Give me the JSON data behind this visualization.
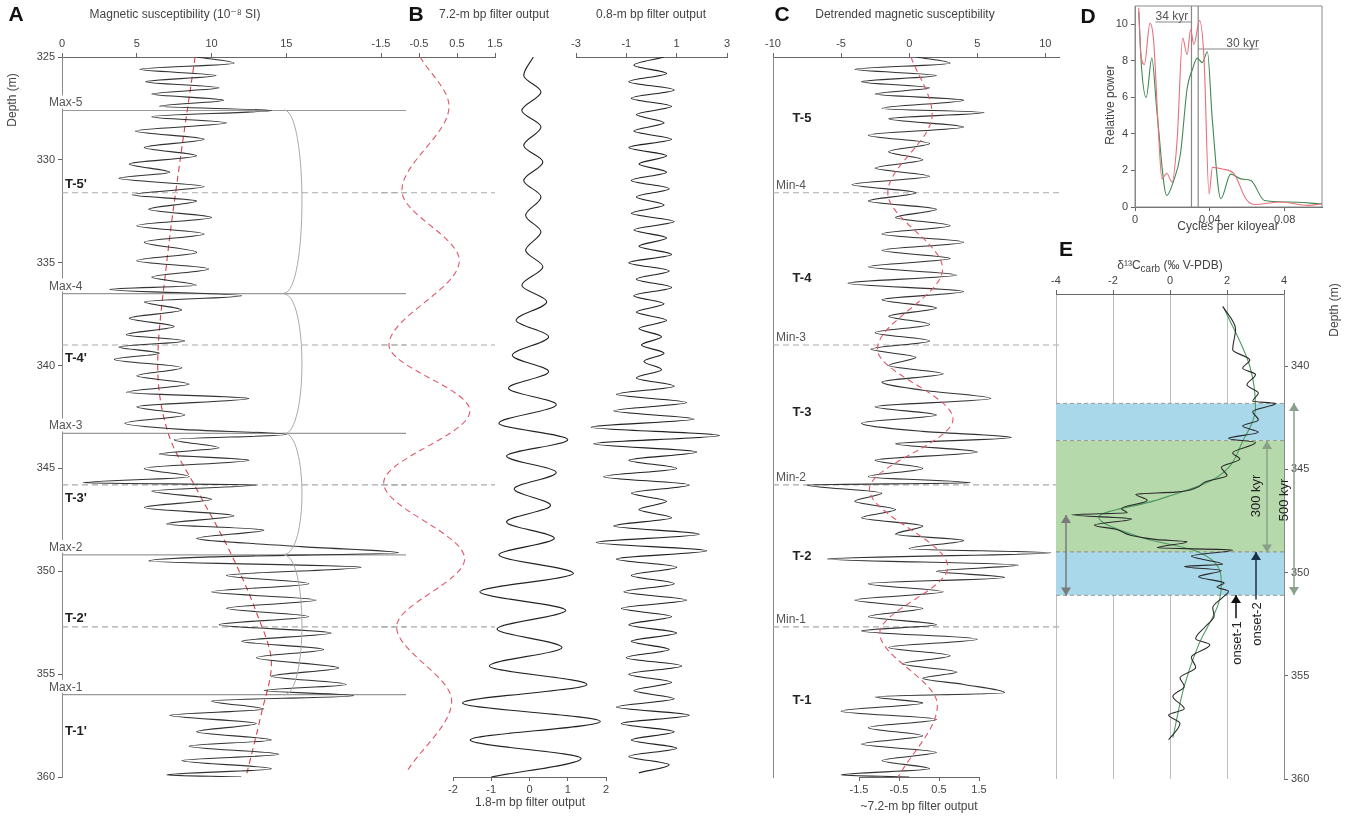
{
  "chart_data": [
    {
      "type": "line",
      "title": "A",
      "xlabel": "Magnetic susceptibility (10⁻⁸ SI)",
      "ylabel": "Depth (m)",
      "xlim": [
        0,
        23
      ],
      "xticks": [
        0,
        5,
        10,
        15
      ],
      "ylim": [
        360,
        325
      ],
      "yticks": [
        325,
        330,
        335,
        340,
        345,
        350,
        355,
        360
      ],
      "marker": "none",
      "series": [
        {
          "color": "#333333",
          "x": [
            9.0,
            11.5,
            5.2,
            10.3,
            5.6,
            10.5,
            6.0,
            10.8,
            6.5,
            14.0,
            6.0,
            11.0,
            4.9,
            9.5,
            5.5,
            9.0,
            4.5,
            7.2,
            3.8,
            9.5,
            4.7,
            9.0,
            5.8,
            10.0,
            5.0,
            9.5,
            5.5,
            9.0,
            5.0,
            9.8,
            6.0,
            9.0,
            3.2,
            12.0,
            5.5,
            8.0,
            4.5,
            7.5,
            4.3,
            8.2,
            3.8,
            6.5,
            3.5,
            8.0,
            5.0,
            8.5,
            4.3,
            12.5,
            5.0,
            8.2,
            4.2,
            8.0,
            15.0,
            7.5,
            10.5,
            6.5,
            12.5,
            5.5,
            8.5,
            1.4,
            13.0,
            6.0,
            10.0,
            5.5,
            11.5,
            7.0,
            13.5,
            9.0,
            16.0,
            22.5,
            10.0,
            5.8,
            20.0,
            11.0,
            16.5,
            10.0,
            17.0,
            11.0,
            16.5,
            10.5,
            18.0,
            12.0,
            17.5,
            13.0,
            18.5,
            14.0,
            19.0,
            13.5,
            19.5,
            10.0,
            13.5,
            7.2,
            13.0,
            9.0,
            14.0,
            8.5,
            14.5,
            8.0,
            14.0,
            7.0,
            12.0
          ],
          "values": [
            325.0,
            325.3,
            325.6,
            325.9,
            326.2,
            326.5,
            326.8,
            327.1,
            327.4,
            327.6,
            327.9,
            328.2,
            328.6,
            329.0,
            329.4,
            329.8,
            330.2,
            330.6,
            330.9,
            331.3,
            331.7,
            332.0,
            332.4,
            332.8,
            333.2,
            333.6,
            334.0,
            334.5,
            334.9,
            335.3,
            335.7,
            336.1,
            336.3,
            336.6,
            336.9,
            337.3,
            337.7,
            338.1,
            338.5,
            338.8,
            339.1,
            339.4,
            339.7,
            340.1,
            340.5,
            340.9,
            341.3,
            341.6,
            342.0,
            342.4,
            342.8,
            343.1,
            343.35,
            343.6,
            344.0,
            344.3,
            344.6,
            345.0,
            345.4,
            345.7,
            345.8,
            346.1,
            346.5,
            346.9,
            347.3,
            347.7,
            348.0,
            348.4,
            348.8,
            349.1,
            349.3,
            349.5,
            349.8,
            350.2,
            350.6,
            351.0,
            351.4,
            351.8,
            352.2,
            352.6,
            353.0,
            353.4,
            353.8,
            354.2,
            354.7,
            355.1,
            355.5,
            355.8,
            356.05,
            356.3,
            356.7,
            357.0,
            357.4,
            357.8,
            358.2,
            358.5,
            358.9,
            359.2,
            359.6,
            359.9,
            360.0
          ]
        },
        {
          "color": "#d9404f",
          "line_style": "dashed",
          "x": [
            8.9,
            7.9,
            7.0,
            6.4,
            7.2,
            9.0,
            11.2,
            13.0,
            14.0,
            13.3,
            12.3
          ],
          "values": [
            325,
            330,
            335,
            340,
            343.5,
            346,
            349,
            352,
            354.5,
            357,
            360
          ]
        }
      ],
      "ref_lines": [
        {
          "axis": "y",
          "value": 327.6,
          "label": "Max-5",
          "color": "#999999"
        },
        {
          "axis": "y",
          "value": 336.5,
          "label": "Max-4",
          "color": "#999999"
        },
        {
          "axis": "y",
          "value": 343.3,
          "label": "Max-3",
          "color": "#999999"
        },
        {
          "axis": "y",
          "value": 349.2,
          "label": "Max-2",
          "color": "#999999"
        },
        {
          "axis": "y",
          "value": 356.0,
          "label": "Max-1",
          "color": "#999999"
        },
        {
          "axis": "y",
          "value": 331.6,
          "color": "#aaaaaa",
          "line_style": "dashed"
        },
        {
          "axis": "y",
          "value": 339.0,
          "color": "#aaaaaa",
          "line_style": "dashed"
        },
        {
          "axis": "y",
          "value": 345.8,
          "color": "#aaaaaa",
          "line_style": "dashed"
        },
        {
          "axis": "y",
          "value": 352.7,
          "color": "#aaaaaa",
          "line_style": "dashed"
        }
      ],
      "annotations": [
        "T-5'",
        "T-4'",
        "T-3'",
        "T-2'",
        "T-1'"
      ]
    },
    {
      "type": "line",
      "title": "B",
      "xlabel": "7.2-m bp filter output",
      "xlim": [
        -1.5,
        1.5
      ],
      "xticks": [
        -1.5,
        -0.5,
        0.5,
        1.5
      ],
      "ylim": [
        360,
        325
      ],
      "tick_labels": "x",
      "marker": "none",
      "series": [
        {
          "color": "#e0566a",
          "line_style": "dashed",
          "x": [
            -0.47,
            0.29,
            -0.95,
            0.56,
            -1.29,
            0.84,
            -1.43,
            0.7,
            -1.09,
            0.36,
            -0.81
          ],
          "values": [
            325,
            327.4,
            331.5,
            334.9,
            339.0,
            342.2,
            345.7,
            349.4,
            352.7,
            356.3,
            359.7
          ]
        }
      ],
      "ref_lines": [
        {
          "axis": "y",
          "value": 331.6,
          "color": "#aaaaaa",
          "line_style": "dashed"
        },
        {
          "axis": "y",
          "value": 339.0,
          "color": "#aaaaaa",
          "line_style": "dashed"
        },
        {
          "axis": "y",
          "value": 345.8,
          "color": "#aaaaaa",
          "line_style": "dashed"
        },
        {
          "axis": "y",
          "value": 352.7,
          "color": "#aaaaaa",
          "line_style": "dashed"
        }
      ]
    },
    {
      "type": "line",
      "xlabel": "1.8-m bp filter output",
      "xlim": [
        -2,
        2
      ],
      "xticks": [
        -2,
        -1,
        0,
        1,
        2
      ],
      "ylim": [
        360,
        325
      ],
      "tick_labels": "x",
      "marker": "none",
      "series": [
        {
          "color": "#222222",
          "x": [
            0.1,
            -0.15,
            0.3,
            -0.2,
            0.3,
            -0.15,
            0.35,
            -0.15,
            0.3,
            -0.1,
            0.3,
            -0.1,
            0.35,
            -0.2,
            0.45,
            -0.35,
            0.5,
            -0.45,
            0.5,
            -0.55,
            0.7,
            -0.8,
            1.0,
            -0.6,
            0.7,
            -0.4,
            0.55,
            -0.6,
            0.65,
            -0.8,
            1.15,
            -1.3,
            0.95,
            -0.85,
            0.85,
            -1.05,
            1.5,
            -1.75,
            1.85,
            -1.55,
            1.35,
            -1.0
          ],
          "values": [
            325.0,
            325.9,
            326.7,
            327.6,
            328.4,
            329.3,
            330.1,
            331.0,
            331.8,
            332.7,
            333.5,
            334.4,
            335.2,
            336.1,
            336.9,
            337.8,
            338.6,
            339.5,
            340.3,
            341.1,
            341.9,
            342.8,
            343.6,
            344.4,
            345.2,
            346.0,
            346.8,
            347.6,
            348.4,
            349.2,
            350.1,
            351.0,
            351.9,
            352.8,
            353.7,
            354.6,
            355.5,
            356.4,
            357.3,
            358.2,
            359.1,
            360.0
          ]
        }
      ]
    },
    {
      "type": "line",
      "xlabel": "0.8-m bp filter output",
      "xlim": [
        -3,
        3
      ],
      "xticks": [
        -3,
        -1,
        1,
        3
      ],
      "ylim": [
        360,
        325
      ],
      "tick_labels": "x",
      "marker": "none",
      "series": [
        {
          "color": "#222222",
          "x": [
            0.5,
            -0.7,
            0.6,
            -0.9,
            0.9,
            -0.8,
            0.8,
            -0.6,
            0.5,
            -0.7,
            0.8,
            -0.9,
            0.6,
            -0.5,
            0.6,
            -0.8,
            0.7,
            -0.6,
            0.5,
            -0.8,
            0.9,
            -0.7,
            0.6,
            -0.5,
            0.8,
            -0.9,
            0.7,
            -0.6,
            0.8,
            -0.7,
            0.5,
            -0.6,
            0.6,
            -0.5,
            0.4,
            -0.4,
            0.5,
            -0.3,
            0.4,
            -0.6,
            0.9,
            -1.4,
            1.4,
            -1.5,
            1.7,
            -2.4,
            2.7,
            -2.3,
            1.8,
            -0.9,
            1.0,
            -1.9,
            1.5,
            -0.8,
            0.6,
            -0.5,
            0.8,
            -1.5,
            1.9,
            -2.2,
            2.2,
            -1.4,
            1.0,
            -0.8,
            0.9,
            -1.1,
            1.4,
            -1.2,
            0.8,
            -0.9,
            1.0,
            -0.8,
            0.7,
            -1.0,
            1.2,
            -0.9,
            0.8,
            -0.7,
            0.9,
            -1.4,
            1.5,
            -1.2,
            0.9,
            -0.8,
            1.0,
            -0.9,
            0.7,
            -0.5
          ],
          "values": [
            325.0,
            325.4,
            325.8,
            326.2,
            326.6,
            327.0,
            327.4,
            327.8,
            328.2,
            328.6,
            329.0,
            329.4,
            329.8,
            330.2,
            330.6,
            331.0,
            331.4,
            331.8,
            332.2,
            332.6,
            333.0,
            333.4,
            333.8,
            334.2,
            334.6,
            335.0,
            335.4,
            335.8,
            336.2,
            336.6,
            337.0,
            337.4,
            337.8,
            338.2,
            338.6,
            339.0,
            339.4,
            339.8,
            340.2,
            340.6,
            341.0,
            341.4,
            341.8,
            342.2,
            342.6,
            343.0,
            343.4,
            343.8,
            344.2,
            344.6,
            345.0,
            345.4,
            345.8,
            346.2,
            346.6,
            347.0,
            347.4,
            347.8,
            348.2,
            348.6,
            349.0,
            349.4,
            349.8,
            350.2,
            350.6,
            351.0,
            351.4,
            351.8,
            352.2,
            352.6,
            353.0,
            353.4,
            353.8,
            354.2,
            354.6,
            355.0,
            355.4,
            355.8,
            356.2,
            356.6,
            357.0,
            357.4,
            357.8,
            358.2,
            358.6,
            359.0,
            359.4,
            359.8
          ]
        }
      ]
    },
    {
      "type": "line",
      "title": "C",
      "xlabel": "Detrended magnetic susceptibility",
      "xlim": [
        -10,
        11
      ],
      "xticks": [
        -10,
        -5,
        0,
        5,
        10
      ],
      "ylim": [
        360,
        325
      ],
      "tick_labels": "x",
      "marker": "none",
      "series": [
        {
          "color": "#333333",
          "x": [
            0.5,
            3.0,
            -4.0,
            2.0,
            -3.5,
            1.5,
            -2.5,
            4.0,
            -2.0,
            5.5,
            -1.5,
            4.0,
            -3.0,
            1.5,
            -1.5,
            1.0,
            -2.5,
            1.5,
            -4.2,
            0.5,
            -3.0,
            2.0,
            -1.0,
            3.0,
            -2.0,
            4.0,
            -2.0,
            3.0,
            -3.0,
            3.5,
            -4.5,
            4.0,
            -2.0,
            2.0,
            -1.5,
            1.5,
            -2.5,
            1.5,
            -2.8,
            0.5,
            -1.5,
            2.5,
            -2.0,
            1.0,
            6.0,
            -2.5,
            2.0,
            -3.5,
            1.0,
            7.5,
            -1.0,
            5.0,
            -2.5,
            1.0,
            -3.0,
            4.5,
            -7.5,
            -2.0,
            -4.0,
            -1.0,
            -3.5,
            1.0,
            -1.0,
            4.0,
            0.0,
            10.4,
            -6.0,
            8.0,
            2.0,
            7.0,
            -3.0,
            2.5,
            -4.0,
            1.0,
            -3.0,
            2.0,
            -3.5,
            5.0,
            -1.5,
            3.0,
            -0.5,
            3.5,
            1.0,
            4.0,
            7.0,
            -2.5,
            1.0,
            -5.0,
            2.0,
            -3.0,
            1.0,
            -3.5,
            2.0,
            -2.0,
            1.5,
            -5.0,
            0.0
          ],
          "values": [
            325.0,
            325.3,
            325.6,
            325.9,
            326.2,
            326.5,
            326.8,
            327.1,
            327.5,
            327.7,
            328.0,
            328.4,
            328.8,
            329.2,
            329.6,
            330.0,
            330.4,
            330.8,
            331.2,
            331.6,
            332.0,
            332.4,
            332.8,
            333.2,
            333.6,
            334.0,
            334.4,
            334.8,
            335.2,
            335.6,
            336.0,
            336.4,
            336.8,
            337.2,
            337.6,
            338.0,
            338.4,
            338.8,
            339.2,
            339.6,
            340.0,
            340.4,
            340.8,
            341.2,
            341.6,
            342.0,
            342.4,
            342.8,
            343.2,
            343.5,
            343.8,
            344.2,
            344.6,
            345.0,
            345.4,
            345.7,
            345.8,
            346.2,
            346.6,
            347.0,
            347.4,
            347.8,
            348.2,
            348.5,
            348.9,
            349.1,
            349.4,
            349.7,
            350.0,
            350.3,
            350.6,
            351.0,
            351.4,
            351.8,
            352.2,
            352.6,
            352.9,
            353.3,
            353.7,
            354.1,
            354.5,
            354.9,
            355.2,
            355.5,
            355.9,
            356.1,
            356.4,
            356.8,
            357.2,
            357.6,
            358.0,
            358.4,
            358.8,
            359.2,
            359.6,
            359.9,
            360.0
          ]
        }
      ],
      "ref_lines": [
        {
          "axis": "y",
          "value": 331.6,
          "label": "Min-4",
          "color": "#aaaaaa",
          "line_style": "dashed"
        },
        {
          "axis": "y",
          "value": 339.0,
          "label": "Min-3",
          "color": "#aaaaaa",
          "line_style": "dashed"
        },
        {
          "axis": "y",
          "value": 345.8,
          "label": "Min-2",
          "color": "#aaaaaa",
          "line_style": "dashed"
        },
        {
          "axis": "y",
          "value": 352.7,
          "label": "Min-1",
          "color": "#aaaaaa",
          "line_style": "dashed"
        }
      ],
      "annotations": [
        "T-5",
        "T-4",
        "T-3",
        "T-2",
        "T-1"
      ]
    },
    {
      "type": "line",
      "xlabel": "~7.2-m bp filter output",
      "xlim": [
        -1.5,
        1.5
      ],
      "xticks": [
        -1.5,
        -0.5,
        0.5,
        1.5
      ],
      "ylim": [
        360,
        325
      ],
      "tick_labels": "x",
      "marker": "none",
      "series": [
        {
          "color": "#e0566a",
          "line_style": "dashed",
          "x": [
            -0.2,
            0.33,
            -0.78,
            0.59,
            -1.04,
            0.85,
            -1.24,
            0.72,
            -0.98,
            0.46,
            -0.52
          ],
          "values": [
            325,
            327.8,
            331.6,
            335.3,
            339.2,
            342.6,
            346.0,
            349.8,
            353.0,
            356.5,
            360
          ]
        }
      ]
    },
    {
      "type": "line",
      "title": "D",
      "xlabel": "Cycles per kiloyear",
      "ylabel": "Relative power",
      "xlim": [
        0,
        0.1
      ],
      "xticks": [
        0,
        0.04,
        0.08
      ],
      "ylim": [
        0,
        11
      ],
      "yticks": [
        0,
        2,
        4,
        6,
        8,
        10
      ],
      "marker": "none",
      "series": [
        {
          "color": "#e8707a",
          "x": [
            0.002,
            0.003,
            0.005,
            0.008,
            0.01,
            0.0126,
            0.0144,
            0.017,
            0.0198,
            0.0225,
            0.0255,
            0.0279,
            0.0297,
            0.0315,
            0.0345,
            0.0369,
            0.0396,
            0.0414,
            0.0467,
            0.053,
            0.0593,
            0.0638,
            0.078,
            0.0926,
            0.1
          ],
          "values": [
            10.9,
            8.5,
            7.8,
            10.05,
            9.06,
            4.0,
            1.54,
            1.85,
            1.36,
            3.62,
            9.24,
            8.33,
            9.7,
            8.9,
            10.2,
            8.15,
            0.72,
            2.17,
            2.08,
            1.81,
            0.45,
            0.14,
            0.27,
            0.09,
            0.18
          ]
        },
        {
          "color": "#3f8a55",
          "x": [
            0.002,
            0.0036,
            0.006,
            0.009,
            0.0117,
            0.017,
            0.0207,
            0.0243,
            0.0279,
            0.0306,
            0.0333,
            0.036,
            0.0387,
            0.0414,
            0.0459,
            0.0512,
            0.0566,
            0.062,
            0.0692,
            0.082,
            0.1
          ],
          "values": [
            10.7,
            7.5,
            6.0,
            8.15,
            5.25,
            0.63,
            1.45,
            2.9,
            6.5,
            7.5,
            8.15,
            7.9,
            8.5,
            4.7,
            0.45,
            1.8,
            1.54,
            1.45,
            0.36,
            0.27,
            0.18
          ]
        }
      ],
      "ref_lines": [
        {
          "axis": "x",
          "value": 0.0302,
          "label": "34 kyr",
          "color": "#888888"
        },
        {
          "axis": "x",
          "value": 0.0338,
          "label": "30 kyr",
          "color": "#888888"
        }
      ]
    },
    {
      "type": "line",
      "title": "E",
      "xlabel": "δ¹³C$_{carb}$ (‰ V-PDB)",
      "ylabel": "Depth (m)",
      "xlim": [
        -4,
        4
      ],
      "xticks": [
        -4,
        -2,
        0,
        2,
        4
      ],
      "ylim": [
        360,
        336.5
      ],
      "yticks": [
        340,
        345,
        350,
        355,
        360
      ],
      "grid": "x",
      "marker": "none",
      "series": [
        {
          "color": "#2b2b2b",
          "x": [
            1.85,
            2.3,
            2.2,
            2.8,
            2.55,
            3.0,
            2.7,
            3.1,
            2.9,
            3.7,
            2.9,
            3.1,
            2.55,
            3.1,
            2.05,
            3.0,
            2.2,
            2.45,
            1.8,
            2.0,
            1.25,
            0.9,
            0.2,
            -1.2,
            -0.8,
            -1.7,
            -1.5,
            -3.45,
            -1.35,
            -2.65,
            -1.9,
            -1.35,
            -0.45,
            0.6,
            -0.45,
            2.2,
            0.75,
            1.85,
            0.5,
            1.8,
            1.0,
            1.9,
            1.65,
            2.05,
            1.85,
            1.5,
            1.55,
            1.25,
            0.9,
            1.4,
            0.75,
            0.9,
            0.35,
            0.5,
            0.1,
            0.5,
            -0.05,
            0.35,
            -0.05
          ],
          "values": [
            337.1,
            338.2,
            339.2,
            339.7,
            340.1,
            340.4,
            340.9,
            341.3,
            341.7,
            341.8,
            342.2,
            342.6,
            342.9,
            343.2,
            343.5,
            343.7,
            344.2,
            344.5,
            344.9,
            345.3,
            345.6,
            345.9,
            346.1,
            346.2,
            346.5,
            346.9,
            347.1,
            347.2,
            347.4,
            347.7,
            347.9,
            348.2,
            348.4,
            348.5,
            348.8,
            348.9,
            349.2,
            349.6,
            349.7,
            349.9,
            350.2,
            350.5,
            350.7,
            350.9,
            351.2,
            351.7,
            352.1,
            352.6,
            353.2,
            353.5,
            354.1,
            354.6,
            355.1,
            355.5,
            356.0,
            356.6,
            356.9,
            357.3,
            358.1
          ]
        },
        {
          "color": "#4f9a63",
          "x": [
            1.9,
            2.8,
            3.0,
            2.6,
            1.5,
            -0.5,
            -2.5,
            -1.0,
            1.0,
            1.8,
            1.7,
            1.0,
            0.5,
            0.1
          ],
          "values": [
            337.2,
            340,
            342,
            343.5,
            345.5,
            346.5,
            347.3,
            348.3,
            349,
            350.5,
            351.5,
            353.5,
            355.5,
            358
          ]
        }
      ],
      "bands": [
        {
          "axis": "y",
          "from": 341.8,
          "to": 343.6,
          "color": "#a8d8ea"
        },
        {
          "axis": "y",
          "from": 343.6,
          "to": 349.0,
          "color": "#b5d9ab"
        },
        {
          "axis": "y",
          "from": 349.0,
          "to": 351.1,
          "color": "#a8d8ea"
        }
      ],
      "annotations": [
        "300 kyr",
        "500 kyr",
        {
          "text": "onset-1",
          "x": 2.3,
          "y": 351.1
        },
        {
          "text": "onset-2",
          "x": 3.0,
          "y": 349.0
        }
      ]
    }
  ]
}
